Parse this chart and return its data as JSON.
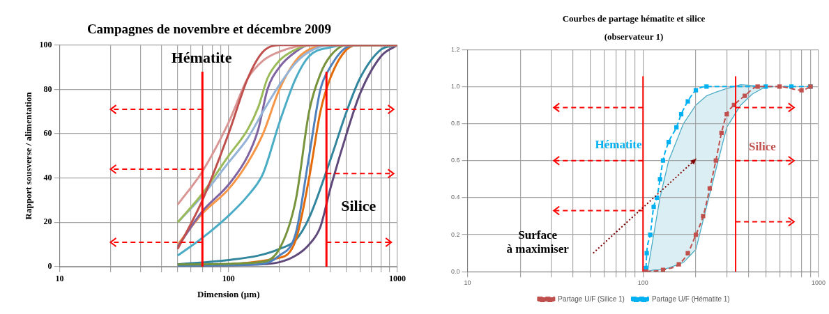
{
  "chart_data": [
    {
      "type": "line",
      "title": "Campagnes de novembre et décembre 2009",
      "xlabel": "Dimension (µm)",
      "ylabel": "Rapport sousverse / alimentation",
      "log": "x",
      "xlim": [
        10,
        1000
      ],
      "xticks": [
        10,
        {
          "value": 20,
          "label": null
        },
        {
          "value": 30,
          "label": null
        },
        {
          "value": 40,
          "label": null
        },
        {
          "value": 50,
          "label": null
        },
        {
          "value": 60,
          "label": null
        },
        {
          "value": 70,
          "label": null
        },
        {
          "value": 80,
          "label": null
        },
        {
          "value": 90,
          "label": null
        },
        100,
        {
          "value": 200,
          "label": null
        },
        {
          "value": 300,
          "label": null
        },
        {
          "value": 400,
          "label": null
        },
        {
          "value": 500,
          "label": null
        },
        {
          "value": 600,
          "label": null
        },
        {
          "value": 700,
          "label": null
        },
        {
          "value": 800,
          "label": null
        },
        {
          "value": 900,
          "label": null
        },
        1000
      ],
      "ylim": [
        0,
        100
      ],
      "yticks": [
        0,
        20,
        40,
        60,
        80,
        100
      ],
      "grid": true,
      "legend": false,
      "marker": "none",
      "line_style": "solid",
      "series": [
        {
          "color": "#c0504d",
          "x": [
            50,
            70,
            100,
            130,
            160,
            200,
            1000
          ],
          "values": [
            8,
            30,
            60,
            85,
            97,
            100,
            100
          ]
        },
        {
          "color": "#d99694",
          "x": [
            50,
            70,
            100,
            130,
            160,
            200,
            300,
            1000
          ],
          "values": [
            28,
            43,
            65,
            85,
            93,
            97,
            100,
            100
          ]
        },
        {
          "color": "#9bbb59",
          "x": [
            50,
            70,
            100,
            130,
            150,
            170,
            200,
            250,
            300,
            1000
          ],
          "values": [
            20,
            33,
            50,
            62,
            72,
            85,
            93,
            98,
            100,
            100
          ]
        },
        {
          "color": "#95b3d7",
          "x": [
            50,
            70,
            100,
            130,
            160,
            200,
            250,
            300,
            400,
            1000
          ],
          "values": [
            20,
            32,
            47,
            58,
            70,
            82,
            92,
            97,
            100,
            100
          ]
        },
        {
          "color": "#8064a2",
          "x": [
            50,
            70,
            100,
            130,
            150,
            170,
            200,
            250,
            300,
            1000
          ],
          "values": [
            9,
            25,
            37,
            50,
            62,
            80,
            90,
            97,
            100,
            100
          ]
        },
        {
          "color": "#f79646",
          "x": [
            50,
            70,
            100,
            130,
            160,
            200,
            250,
            300,
            400,
            1000
          ],
          "values": [
            10,
            24,
            35,
            47,
            60,
            80,
            93,
            98,
            100,
            100
          ]
        },
        {
          "color": "#4bacc6",
          "x": [
            50,
            70,
            100,
            130,
            160,
            200,
            250,
            300,
            400,
            500,
            1000
          ],
          "values": [
            5,
            13,
            23,
            32,
            42,
            65,
            85,
            95,
            99,
            100,
            100
          ]
        },
        {
          "color": "#77933c",
          "x": [
            50,
            150,
            200,
            250,
            300,
            350,
            400,
            500,
            1000
          ],
          "values": [
            1,
            2,
            8,
            30,
            70,
            87,
            95,
            100,
            100
          ]
        },
        {
          "color": "#4f81bd",
          "x": [
            50,
            150,
            200,
            250,
            300,
            350,
            400,
            500,
            600,
            1000
          ],
          "values": [
            0.5,
            1,
            5,
            15,
            50,
            80,
            90,
            99,
            100,
            100
          ]
        },
        {
          "color": "#e46c0a",
          "x": [
            50,
            200,
            250,
            300,
            350,
            400,
            500,
            600,
            1000
          ],
          "values": [
            0.5,
            4,
            12,
            40,
            70,
            85,
            98,
            100,
            100
          ]
        },
        {
          "color": "#31859c",
          "x": [
            50,
            100,
            150,
            200,
            250,
            300,
            400,
            500,
            600,
            800,
            1000
          ],
          "values": [
            1,
            3,
            5,
            8,
            12,
            22,
            48,
            70,
            85,
            98,
            100
          ]
        },
        {
          "color": "#604a7b",
          "x": [
            50,
            150,
            200,
            250,
            300,
            350,
            400,
            500,
            600,
            800,
            1000
          ],
          "values": [
            0.5,
            1,
            2,
            5,
            10,
            18,
            35,
            60,
            78,
            95,
            100
          ]
        }
      ],
      "ref_lines": [
        {
          "axis": "x",
          "value": 70,
          "color": "#ff0000"
        },
        {
          "axis": "x",
          "value": 380,
          "color": "#ff0000"
        }
      ],
      "annotations": [
        "Hématite",
        "Silice"
      ]
    },
    {
      "type": "line",
      "title": "Courbes de partage hématite et silice",
      "subtitle": "(observateur 1)",
      "log": "x",
      "xlim": [
        10,
        1000
      ],
      "xticks": [
        10,
        {
          "value": 20,
          "label": null
        },
        {
          "value": 30,
          "label": null
        },
        {
          "value": 40,
          "label": null
        },
        {
          "value": 50,
          "label": null
        },
        {
          "value": 60,
          "label": null
        },
        {
          "value": 70,
          "label": null
        },
        {
          "value": 80,
          "label": null
        },
        {
          "value": 90,
          "label": null
        },
        100,
        {
          "value": 200,
          "label": null
        },
        {
          "value": 300,
          "label": null
        },
        {
          "value": 400,
          "label": null
        },
        {
          "value": 500,
          "label": null
        },
        {
          "value": 600,
          "label": null
        },
        {
          "value": 700,
          "label": null
        },
        {
          "value": 800,
          "label": null
        },
        {
          "value": 900,
          "label": null
        },
        1000
      ],
      "ylim": [
        0,
        1.2
      ],
      "yticks": [
        {
          "value": 0,
          "label": "0.0"
        },
        0.2,
        0.4,
        0.6,
        0.8,
        {
          "value": 1,
          "label": "1.0"
        },
        1.2
      ],
      "grid": true,
      "legend": "bottom",
      "marker": "square",
      "line_style": "dashed",
      "series": [
        {
          "name": "Partage U/F (Silice 1)",
          "color": "#c0504d",
          "x": [
            104,
            130,
            160,
            180,
            200,
            220,
            240,
            260,
            280,
            300,
            330,
            380,
            450,
            600,
            800,
            900
          ],
          "values": [
            0,
            0.01,
            0.04,
            0.1,
            0.2,
            0.3,
            0.45,
            0.6,
            0.75,
            0.85,
            0.9,
            0.95,
            1,
            1,
            0.98,
            1
          ]
        },
        {
          "name": "Partage U/F (Hématite 1)",
          "color": "#00b0f0",
          "x": [
            104,
            105,
            110,
            115,
            120,
            125,
            130,
            140,
            155,
            165,
            180,
            200,
            230,
            500,
            700,
            900
          ],
          "values": [
            0.02,
            0.1,
            0.2,
            0.35,
            0.4,
            0.5,
            0.6,
            0.7,
            0.78,
            0.85,
            0.92,
            0.98,
            1,
            1,
            1,
            1
          ]
        }
      ],
      "ref_lines": [
        {
          "axis": "x",
          "value": 100,
          "color": "#ff0000"
        },
        {
          "axis": "x",
          "value": 337,
          "color": "#ff0000"
        }
      ],
      "annotations": [
        "Hématite",
        "Silice",
        "Surface\nà maximiser"
      ]
    }
  ]
}
